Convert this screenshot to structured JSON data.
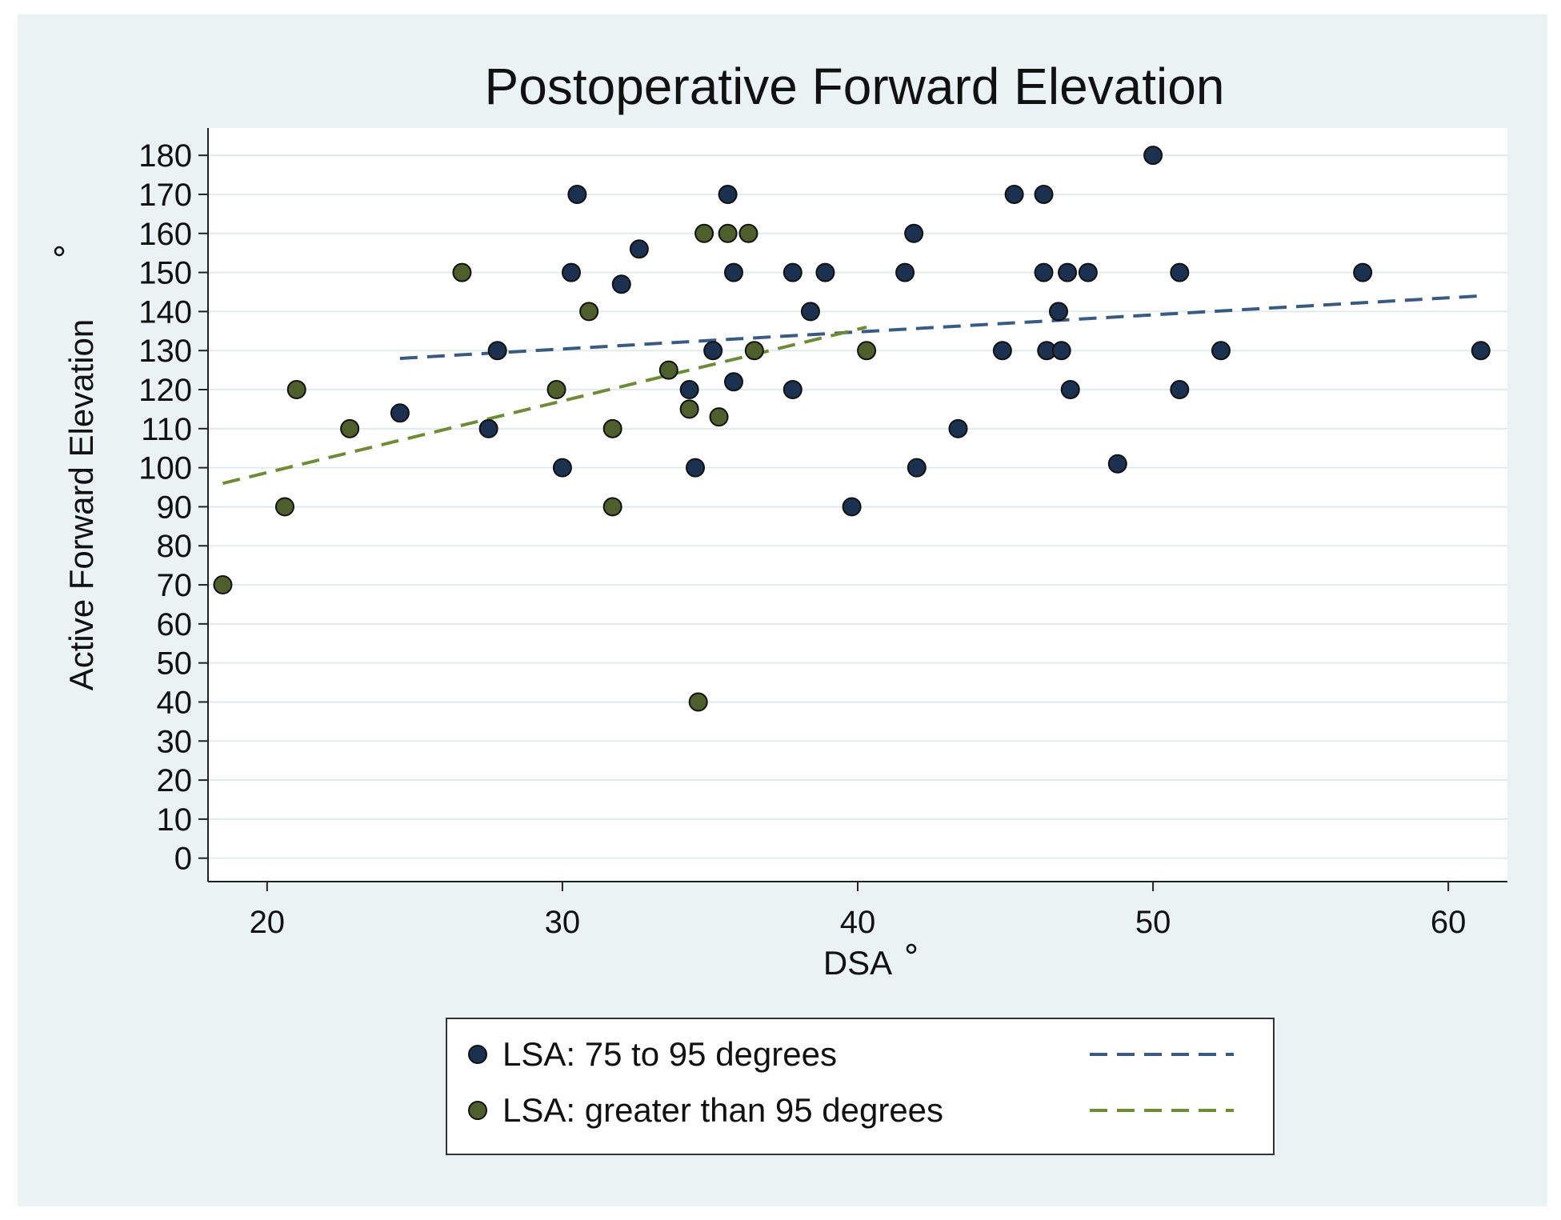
{
  "chart_data": {
    "type": "scatter",
    "title": "Postoperative Forward Elevation",
    "xlabel": "DSA",
    "ylabel": "Active Forward Elevation",
    "xlim": [
      18,
      62
    ],
    "ylim": [
      -6,
      187
    ],
    "xticks": [
      20,
      30,
      40,
      50,
      60
    ],
    "yticks": [
      0,
      10,
      20,
      30,
      40,
      50,
      60,
      70,
      80,
      90,
      100,
      110,
      120,
      130,
      140,
      150,
      160,
      170,
      180
    ],
    "grid": true,
    "series": [
      {
        "name": "LSA: 75 to 95 degrees",
        "color": "#1c3050",
        "line_color": "#3a5a80",
        "points": [
          [
            24.5,
            114
          ],
          [
            27.5,
            110
          ],
          [
            27.8,
            130
          ],
          [
            30.0,
            100
          ],
          [
            30.3,
            150
          ],
          [
            30.5,
            170
          ],
          [
            32.0,
            147
          ],
          [
            32.6,
            156
          ],
          [
            34.3,
            120
          ],
          [
            34.5,
            100
          ],
          [
            35.1,
            130
          ],
          [
            35.6,
            170
          ],
          [
            35.8,
            122
          ],
          [
            35.8,
            150
          ],
          [
            37.8,
            150
          ],
          [
            37.8,
            120
          ],
          [
            38.4,
            140
          ],
          [
            38.9,
            150
          ],
          [
            39.8,
            90
          ],
          [
            41.6,
            150
          ],
          [
            41.9,
            160
          ],
          [
            42.0,
            100
          ],
          [
            43.4,
            110
          ],
          [
            44.9,
            130
          ],
          [
            45.3,
            170
          ],
          [
            46.3,
            170
          ],
          [
            46.3,
            150
          ],
          [
            46.4,
            130
          ],
          [
            46.8,
            140
          ],
          [
            46.9,
            130
          ],
          [
            47.1,
            150
          ],
          [
            47.2,
            120
          ],
          [
            47.8,
            150
          ],
          [
            48.8,
            101
          ],
          [
            50.0,
            180
          ],
          [
            50.9,
            150
          ],
          [
            50.9,
            120
          ],
          [
            52.3,
            130
          ],
          [
            57.1,
            150
          ],
          [
            61.1,
            130
          ]
        ],
        "fit": {
          "x": [
            24.5,
            61.1
          ],
          "y": [
            128,
            144
          ]
        }
      },
      {
        "name": "LSA: greater than 95 degrees",
        "color": "#4e5e2c",
        "line_color": "#6f8a38",
        "points": [
          [
            18.5,
            70
          ],
          [
            20.6,
            90
          ],
          [
            21.0,
            120
          ],
          [
            22.8,
            110
          ],
          [
            26.6,
            150
          ],
          [
            29.8,
            120
          ],
          [
            30.9,
            140
          ],
          [
            31.7,
            110
          ],
          [
            31.7,
            90
          ],
          [
            33.6,
            125
          ],
          [
            34.3,
            115
          ],
          [
            34.6,
            40
          ],
          [
            34.8,
            160
          ],
          [
            35.3,
            113
          ],
          [
            35.6,
            160
          ],
          [
            36.3,
            160
          ],
          [
            36.5,
            130
          ],
          [
            40.3,
            130
          ]
        ],
        "fit": {
          "x": [
            18.5,
            40.3
          ],
          "y": [
            96,
            136
          ]
        }
      }
    ],
    "legend": "bottom-center"
  }
}
